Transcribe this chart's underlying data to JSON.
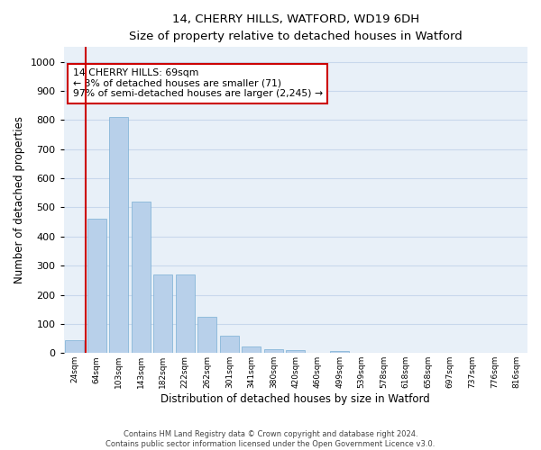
{
  "title_line1": "14, CHERRY HILLS, WATFORD, WD19 6DH",
  "title_line2": "Size of property relative to detached houses in Watford",
  "xlabel": "Distribution of detached houses by size in Watford",
  "ylabel": "Number of detached properties",
  "categories": [
    "24sqm",
    "64sqm",
    "103sqm",
    "143sqm",
    "182sqm",
    "222sqm",
    "262sqm",
    "301sqm",
    "341sqm",
    "380sqm",
    "420sqm",
    "460sqm",
    "499sqm",
    "539sqm",
    "578sqm",
    "618sqm",
    "658sqm",
    "697sqm",
    "737sqm",
    "776sqm",
    "816sqm"
  ],
  "values": [
    45,
    460,
    810,
    520,
    270,
    270,
    125,
    60,
    22,
    12,
    10,
    0,
    7,
    0,
    0,
    0,
    0,
    0,
    0,
    0,
    0
  ],
  "bar_color": "#b8d0ea",
  "bar_edge_color": "#7aafd4",
  "vline_x": 0.5,
  "vline_color": "#cc0000",
  "annotation_text": "14 CHERRY HILLS: 69sqm\n← 3% of detached houses are smaller (71)\n97% of semi-detached houses are larger (2,245) →",
  "annotation_box_color": "#ffffff",
  "annotation_box_edge": "#cc0000",
  "ylim": [
    0,
    1050
  ],
  "yticks": [
    0,
    100,
    200,
    300,
    400,
    500,
    600,
    700,
    800,
    900,
    1000
  ],
  "grid_color": "#c8d8ec",
  "background_color": "#e8f0f8",
  "footer_line1": "Contains HM Land Registry data © Crown copyright and database right 2024.",
  "footer_line2": "Contains public sector information licensed under the Open Government Licence v3.0."
}
